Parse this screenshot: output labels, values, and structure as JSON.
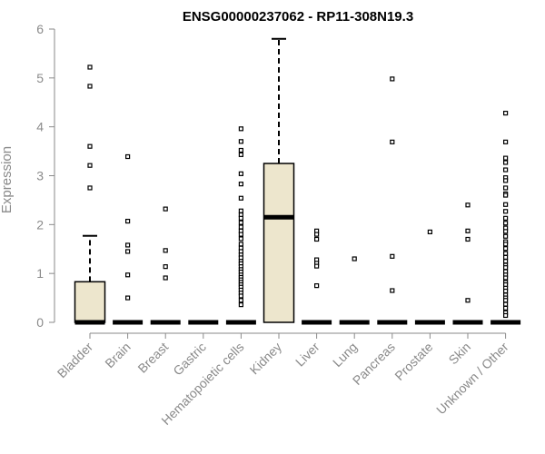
{
  "chart_data": {
    "type": "box",
    "title": "ENSG00000237062 - RP11-308N19.3",
    "xlabel": "",
    "ylabel": "Expression",
    "ylim": [
      0,
      6
    ],
    "yticks": [
      0,
      1,
      2,
      3,
      4,
      5,
      6
    ],
    "box_fill": "#ede6cd",
    "categories": [
      "Bladder",
      "Brain",
      "Breast",
      "Gastric",
      "Hematopoietic cells",
      "Kidney",
      "Liver",
      "Lung",
      "Pancreas",
      "Prostate",
      "Skin",
      "Unknown / Other"
    ],
    "boxes": [
      {
        "min": 0,
        "q1": 0,
        "median": 0,
        "q3": 0.83,
        "max": 1.77,
        "outliers": [
          5.22,
          4.83,
          3.6,
          3.21,
          2.75
        ]
      },
      {
        "min": 0,
        "q1": 0,
        "median": 0,
        "q3": 0,
        "max": 0,
        "outliers": [
          3.39,
          2.07,
          1.58,
          1.45,
          0.97,
          0.5
        ]
      },
      {
        "min": 0,
        "q1": 0,
        "median": 0,
        "q3": 0,
        "max": 0,
        "outliers": [
          2.32,
          1.47,
          1.14,
          0.91
        ]
      },
      {
        "min": 0,
        "q1": 0,
        "median": 0,
        "q3": 0,
        "max": 0,
        "outliers": []
      },
      {
        "min": 0,
        "q1": 0,
        "median": 0,
        "q3": 0,
        "max": 0,
        "outliers": [
          3.96,
          3.7,
          3.52,
          3.43,
          3.04,
          2.83,
          2.54,
          2.28,
          2.2,
          2.13,
          2.04,
          1.95,
          1.87,
          1.8,
          1.71,
          1.6,
          1.52,
          1.45,
          1.38,
          1.32,
          1.25,
          1.2,
          1.14,
          1.08,
          1.03,
          0.97,
          0.92,
          0.87,
          0.82,
          0.77,
          0.72,
          0.66,
          0.6,
          0.54,
          0.45,
          0.36
        ]
      },
      {
        "min": 0,
        "q1": 0,
        "median": 2.15,
        "q3": 3.25,
        "max": 5.8,
        "outliers": []
      },
      {
        "min": 0,
        "q1": 0,
        "median": 0,
        "q3": 0,
        "max": 0,
        "outliers": [
          1.87,
          1.8,
          1.7,
          1.28,
          1.21,
          1.15,
          0.75
        ]
      },
      {
        "min": 0,
        "q1": 0,
        "median": 0,
        "q3": 0,
        "max": 0,
        "outliers": [
          1.3
        ]
      },
      {
        "min": 0,
        "q1": 0,
        "median": 0,
        "q3": 0,
        "max": 0,
        "outliers": [
          4.98,
          3.69,
          1.35,
          0.65
        ]
      },
      {
        "min": 0,
        "q1": 0,
        "median": 0,
        "q3": 0,
        "max": 0,
        "outliers": [
          1.85
        ]
      },
      {
        "min": 0,
        "q1": 0,
        "median": 0,
        "q3": 0,
        "max": 0,
        "outliers": [
          2.4,
          1.87,
          1.7,
          0.45
        ]
      },
      {
        "min": 0,
        "q1": 0,
        "median": 0,
        "q3": 0,
        "max": 0,
        "outliers": [
          4.28,
          3.69,
          3.36,
          3.27,
          3.12,
          2.96,
          2.9,
          2.75,
          2.63,
          2.6,
          2.41,
          2.27,
          2.13,
          2.03,
          1.93,
          1.86,
          1.76,
          1.65,
          1.6,
          1.51,
          1.41,
          1.33,
          1.25,
          1.17,
          1.12,
          1.04,
          0.97,
          0.91,
          0.82,
          0.77,
          0.7,
          0.64,
          0.56,
          0.5,
          0.45,
          0.37,
          0.29,
          0.2,
          0.14
        ]
      }
    ]
  }
}
